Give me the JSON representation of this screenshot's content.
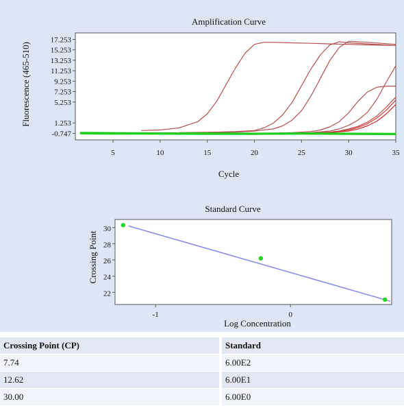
{
  "chart_data": [
    {
      "type": "line",
      "title": "Amplification Curve",
      "xlabel": "Cycle",
      "ylabel": "Fluorescence (465-510)",
      "xlim": [
        1,
        35
      ],
      "ylim": [
        -2.0,
        18.5
      ],
      "xticks": [
        5,
        10,
        15,
        20,
        25,
        30,
        35
      ],
      "yticks": [
        17.253,
        15.253,
        13.253,
        11.253,
        9.253,
        7.253,
        5.253,
        1.253,
        -0.747
      ],
      "ytick_labels": [
        "17.253",
        "15.253",
        "13.253",
        "11.253",
        "9.253",
        "7.253",
        "5.253",
        "1.253",
        "-0.747"
      ],
      "grid": false,
      "series": [
        {
          "x": [
            8,
            10,
            12,
            14,
            15,
            16,
            17,
            18,
            19,
            20,
            21,
            22,
            24,
            26,
            28,
            30,
            32,
            35
          ],
          "y": [
            -0.2,
            -0.1,
            0.3,
            1.5,
            3.0,
            5.4,
            8.6,
            11.8,
            14.6,
            16.3,
            16.7,
            16.7,
            16.6,
            16.5,
            16.4,
            16.3,
            16.2,
            16.1
          ]
        },
        {
          "x": [
            12,
            16,
            18,
            20,
            21,
            22,
            23,
            24,
            25,
            26,
            27,
            28,
            29,
            30,
            32,
            35
          ],
          "y": [
            -0.6,
            -0.5,
            -0.4,
            -0.2,
            0.3,
            1.2,
            2.8,
            5.2,
            8.4,
            11.6,
            14.3,
            16.2,
            16.8,
            16.6,
            16.4,
            16.1
          ]
        },
        {
          "x": [
            12,
            16,
            18,
            20,
            22,
            23,
            24,
            25,
            26,
            27,
            28,
            29,
            30,
            32,
            35
          ],
          "y": [
            -0.7,
            -0.6,
            -0.5,
            -0.3,
            0.1,
            0.7,
            1.8,
            3.6,
            6.4,
            9.8,
            13.2,
            15.7,
            16.9,
            16.7,
            16.3
          ]
        },
        {
          "x": [
            18,
            22,
            24,
            26,
            27,
            28,
            29,
            30,
            31,
            32,
            33,
            34,
            35
          ],
          "y": [
            -0.7,
            -0.7,
            -0.6,
            -0.4,
            -0.1,
            0.5,
            1.5,
            3.2,
            5.4,
            7.2,
            8.1,
            8.3,
            8.3
          ]
        },
        {
          "x": [
            20,
            24,
            26,
            28,
            29,
            30,
            31,
            32,
            33,
            34,
            35
          ],
          "y": [
            -0.7,
            -0.7,
            -0.6,
            -0.3,
            0.1,
            0.8,
            1.8,
            3.3,
            5.8,
            9.1,
            12.2
          ]
        },
        {
          "x": [
            20,
            26,
            28,
            29,
            30,
            31,
            32,
            33,
            34,
            35
          ],
          "y": [
            -0.7,
            -0.7,
            -0.5,
            -0.3,
            0.1,
            0.6,
            1.4,
            2.6,
            4.3,
            6.2
          ]
        },
        {
          "x": [
            22,
            26,
            28,
            29,
            30,
            31,
            32,
            33,
            34,
            35
          ],
          "y": [
            -0.7,
            -0.7,
            -0.6,
            -0.4,
            -0.1,
            0.4,
            1.1,
            2.2,
            3.7,
            5.6
          ]
        },
        {
          "x": [
            22,
            26,
            28,
            30,
            31,
            32,
            33,
            34,
            35
          ],
          "y": [
            -0.7,
            -0.7,
            -0.6,
            -0.3,
            0.1,
            0.7,
            1.6,
            3.0,
            4.8
          ]
        },
        {
          "x": [
            1.5,
            5,
            10,
            15,
            20,
            25,
            30,
            35
          ],
          "y": [
            -0.75,
            -0.8,
            -0.8,
            -0.85,
            -0.85,
            -0.8,
            -0.85,
            -0.9
          ]
        },
        {
          "x": [
            1.5,
            5,
            10,
            15,
            20,
            25,
            30,
            35
          ],
          "y": [
            -0.65,
            -0.7,
            -0.75,
            -0.75,
            -0.8,
            -0.75,
            -0.8,
            -0.85
          ]
        }
      ],
      "series_colors": [
        "#b5504f",
        "#b5504f",
        "#b5504f",
        "#b5504f",
        "#b5504f",
        "#c04a48",
        "#c83a38",
        "#cc2a2a",
        "#22d622",
        "#1fce1f"
      ]
    },
    {
      "type": "scatter",
      "title": "Standard Curve",
      "xlabel": "Log Concentration",
      "ylabel": "Crossing Point",
      "xlim": [
        -1.3,
        0.75
      ],
      "ylim": [
        20.5,
        31
      ],
      "xticks": [
        -1,
        0
      ],
      "xtick_labels": [
        "-1",
        "0"
      ],
      "yticks": [
        30,
        28,
        26,
        24,
        22
      ],
      "ytick_labels": [
        "30",
        "28",
        "26",
        "24",
        "22"
      ],
      "points": [
        {
          "x": -1.24,
          "y": 30.3
        },
        {
          "x": -0.22,
          "y": 26.2
        },
        {
          "x": 0.7,
          "y": 21.1
        }
      ],
      "fit_line": {
        "x": [
          -1.2,
          0.74
        ],
        "y": [
          30.2,
          20.9
        ]
      },
      "point_color": "#22d622",
      "line_color": "#8e8eea"
    }
  ],
  "results_table": {
    "columns": [
      "Crossing Point (CP)",
      "Standard"
    ],
    "rows": [
      [
        "7.74",
        "6.00E2"
      ],
      [
        "12.62",
        "6.00E1"
      ],
      [
        "30.00",
        "6.00E0"
      ]
    ]
  }
}
